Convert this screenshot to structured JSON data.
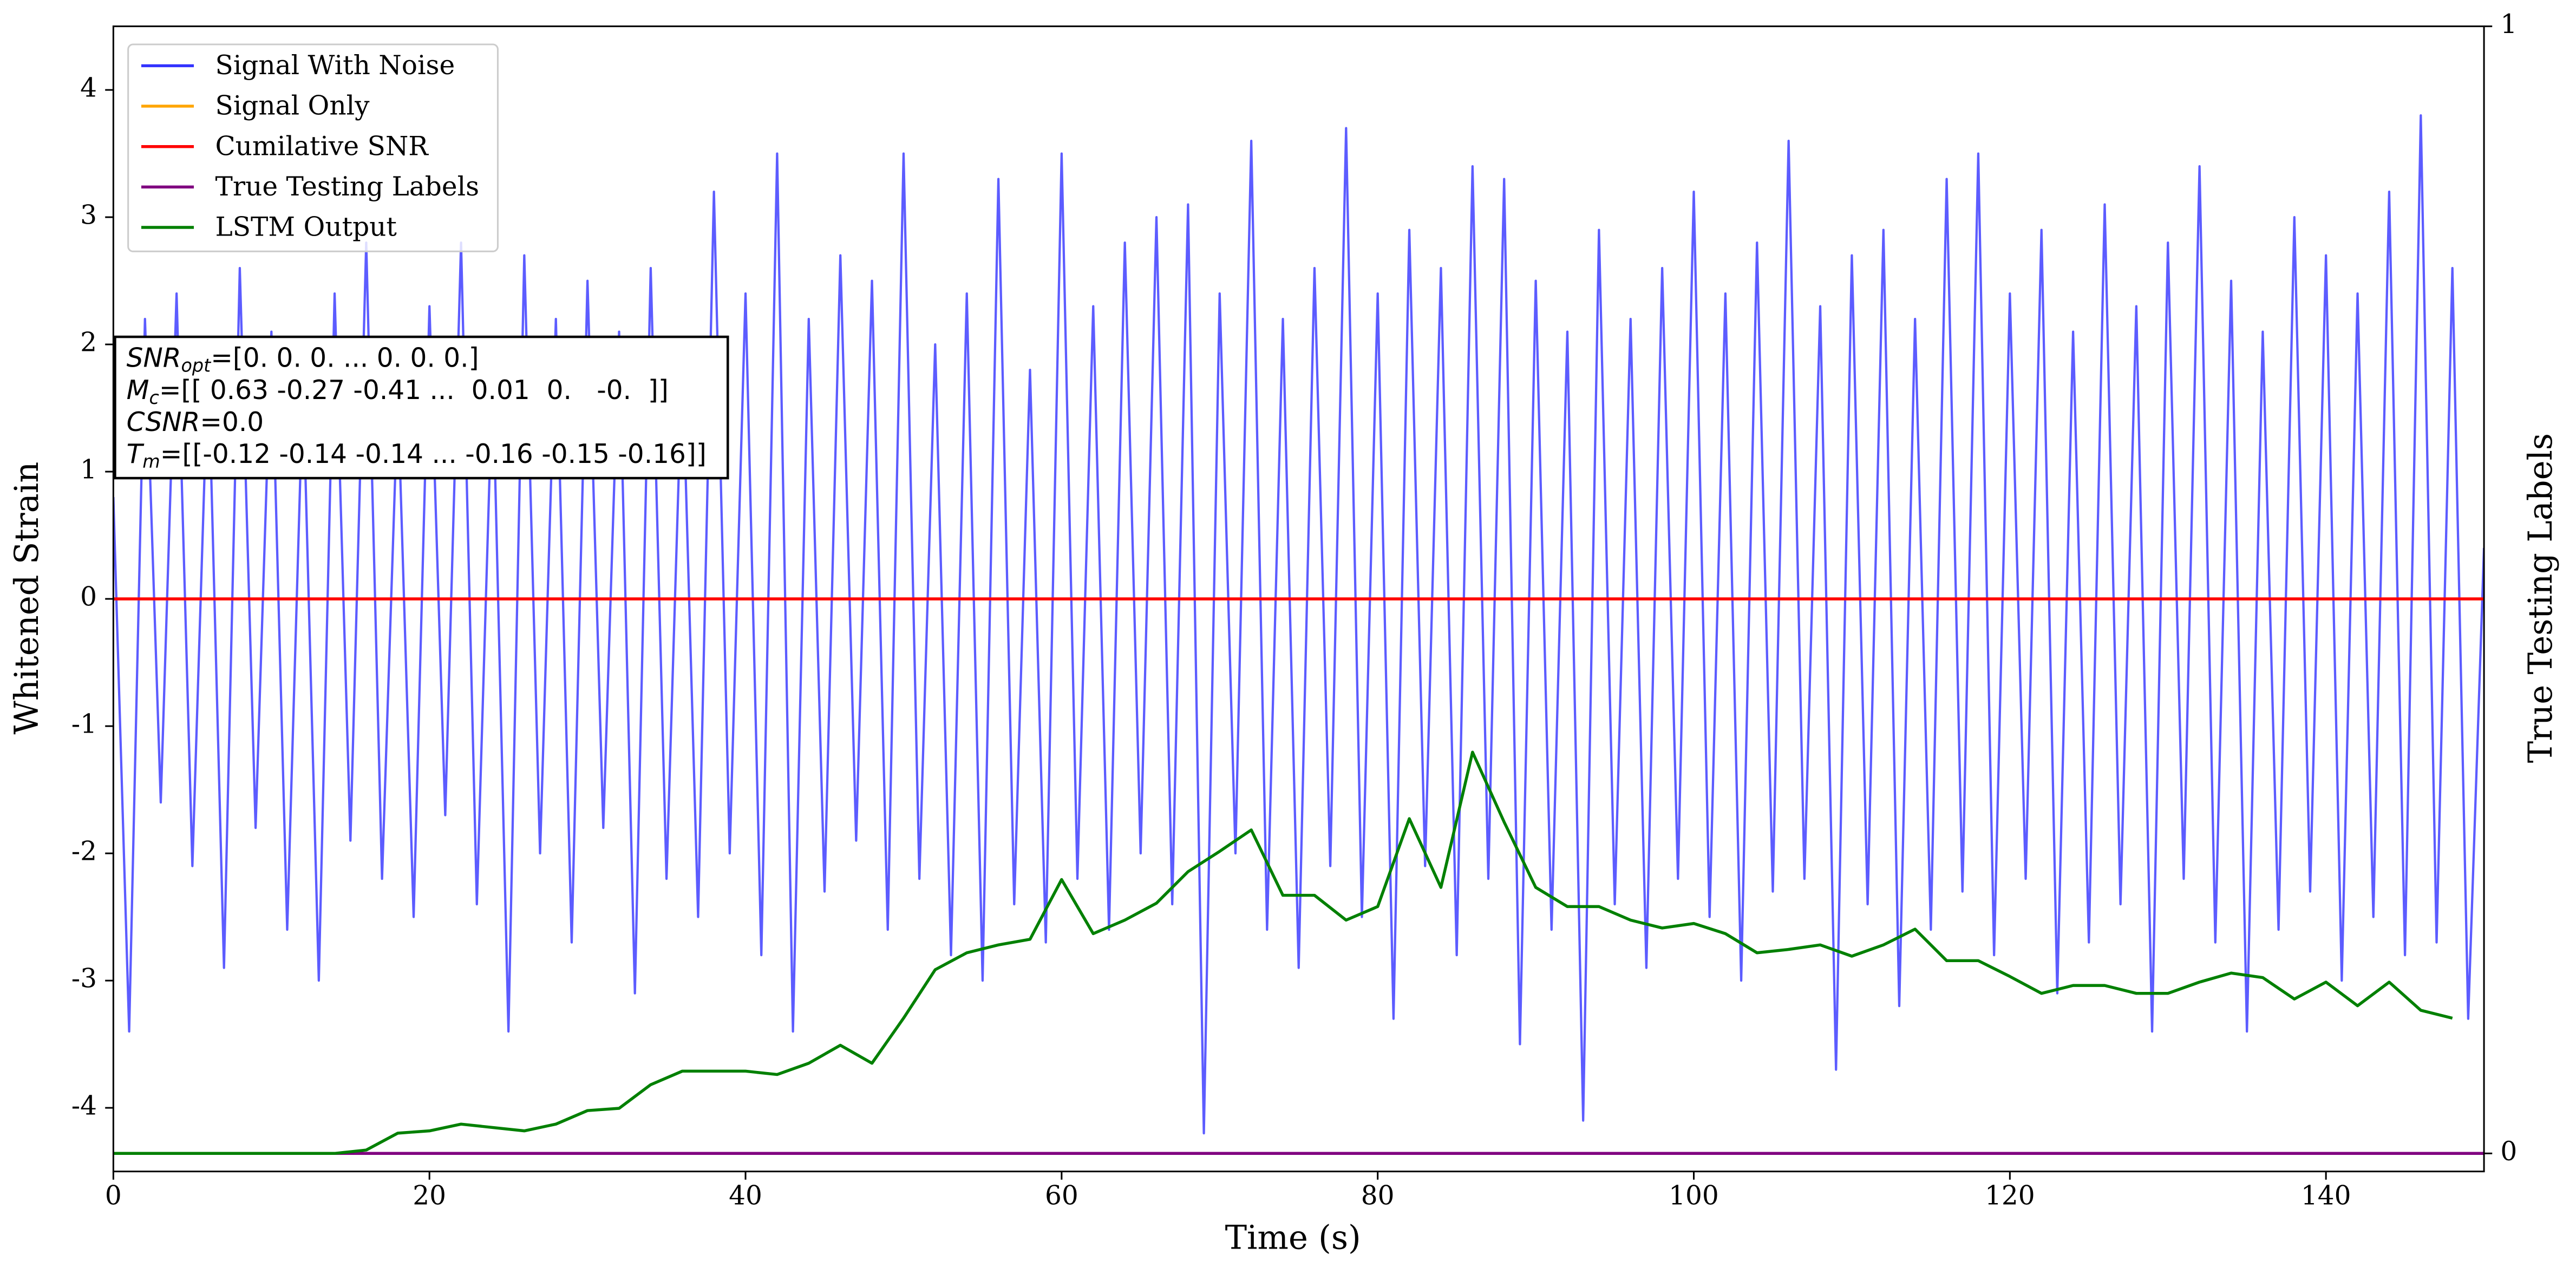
{
  "chart_data": {
    "type": "line",
    "xlabel": "Time (s)",
    "ylabel": "Whitened Strain",
    "y2label": "True Testing Labels",
    "xlim": [
      0,
      150
    ],
    "xticks": [
      0,
      20,
      40,
      60,
      80,
      100,
      120,
      140
    ],
    "ylim": [
      -4.5,
      4.5
    ],
    "yticks": [
      -4,
      -3,
      -2,
      -1,
      0,
      1,
      2,
      3,
      4
    ],
    "y2lim": [
      -0.016,
      1
    ],
    "y2ticks": [
      0,
      1
    ],
    "legend": "upper left",
    "annotations": [
      {
        "base": "SNR",
        "sub": "opt",
        "text": "=[0. 0. 0. ... 0. 0. 0.]"
      },
      {
        "base": "M",
        "sub": "c",
        "text": "=[[ 0.63 -0.27 -0.41 ...  0.01  0.   -0.  ]]"
      },
      {
        "base": "CSNR",
        "text": "=0.0"
      },
      {
        "base": "T",
        "sub": "m",
        "text": "=[[-0.12 -0.14 -0.14 ... -0.16 -0.15 -0.16]]"
      }
    ],
    "series": [
      {
        "name": "Signal With Noise",
        "color": "#3333ff",
        "x": [
          0,
          1,
          2,
          3,
          4,
          5,
          6,
          7,
          8,
          9,
          10,
          11,
          12,
          13,
          14,
          15,
          16,
          17,
          18,
          19,
          20,
          21,
          22,
          23,
          24,
          25,
          26,
          27,
          28,
          29,
          30,
          31,
          32,
          33,
          34,
          35,
          36,
          37,
          38,
          39,
          40,
          41,
          42,
          43,
          44,
          45,
          46,
          47,
          48,
          49,
          50,
          51,
          52,
          53,
          54,
          55,
          56,
          57,
          58,
          59,
          60,
          61,
          62,
          63,
          64,
          65,
          66,
          67,
          68,
          69,
          70,
          71,
          72,
          73,
          74,
          75,
          76,
          77,
          78,
          79,
          80,
          81,
          82,
          83,
          84,
          85,
          86,
          87,
          88,
          89,
          90,
          91,
          92,
          93,
          94,
          95,
          96,
          97,
          98,
          99,
          100,
          101,
          102,
          103,
          104,
          105,
          106,
          107,
          108,
          109,
          110,
          111,
          112,
          113,
          114,
          115,
          116,
          117,
          118,
          119,
          120,
          121,
          122,
          123,
          124,
          125,
          126,
          127,
          128,
          129,
          130,
          131,
          132,
          133,
          134,
          135,
          136,
          137,
          138,
          139,
          140,
          141,
          142,
          143,
          144,
          145,
          146,
          147,
          148,
          149,
          150
        ],
        "values": [
          0.8,
          -3.4,
          2.2,
          -1.6,
          2.4,
          -2.1,
          1.9,
          -2.9,
          2.6,
          -1.8,
          2.1,
          -2.6,
          1.7,
          -3.0,
          2.4,
          -1.9,
          2.8,
          -2.2,
          1.6,
          -2.5,
          2.3,
          -1.7,
          2.8,
          -2.4,
          1.8,
          -3.4,
          2.7,
          -2.0,
          2.2,
          -2.7,
          2.5,
          -1.8,
          2.1,
          -3.1,
          2.6,
          -2.2,
          1.9,
          -2.5,
          3.2,
          -2.0,
          2.4,
          -2.8,
          3.5,
          -3.4,
          2.2,
          -2.3,
          2.7,
          -1.9,
          2.5,
          -2.6,
          3.5,
          -2.2,
          2.0,
          -2.8,
          2.4,
          -3.0,
          3.3,
          -2.4,
          1.8,
          -2.7,
          3.5,
          -2.2,
          2.3,
          -2.6,
          2.8,
          -2.0,
          3.0,
          -2.4,
          3.1,
          -4.2,
          2.4,
          -2.0,
          3.6,
          -2.6,
          2.2,
          -2.9,
          2.6,
          -2.1,
          3.7,
          -2.5,
          2.4,
          -3.3,
          2.9,
          -2.1,
          2.6,
          -2.8,
          3.4,
          -2.2,
          3.3,
          -3.5,
          2.5,
          -2.6,
          2.1,
          -4.1,
          2.9,
          -2.4,
          2.2,
          -2.9,
          2.6,
          -2.2,
          3.2,
          -2.5,
          2.4,
          -3.0,
          2.8,
          -2.3,
          3.6,
          -2.2,
          2.3,
          -3.7,
          2.7,
          -2.4,
          2.9,
          -3.2,
          2.2,
          -2.6,
          3.3,
          -2.3,
          3.5,
          -2.8,
          2.4,
          -2.2,
          2.9,
          -3.1,
          2.1,
          -2.7,
          3.1,
          -2.4,
          2.3,
          -3.4,
          2.8,
          -2.2,
          3.4,
          -2.7,
          2.5,
          -3.4,
          2.1,
          -2.6,
          3.0,
          -2.3,
          2.7,
          -3.0,
          2.4,
          -2.5,
          3.2,
          -2.8,
          3.8,
          -2.7,
          2.6,
          -3.3,
          0.4
        ]
      },
      {
        "name": "Signal Only",
        "color": "#ffa500",
        "x": [
          0,
          150
        ],
        "values": [
          0,
          0
        ]
      },
      {
        "name": "Cumilative SNR",
        "color": "#ff0000",
        "x": [
          0,
          150
        ],
        "values": [
          0,
          0
        ]
      },
      {
        "name": "True Testing Labels",
        "color": "#800080",
        "axis": "y2",
        "x": [
          0,
          150
        ],
        "values": [
          0,
          0
        ]
      },
      {
        "name": "LSTM Output",
        "color": "#008000",
        "axis": "y2",
        "x": [
          0,
          2,
          4,
          6,
          8,
          10,
          12,
          14,
          16,
          18,
          20,
          22,
          24,
          26,
          28,
          30,
          32,
          34,
          36,
          38,
          40,
          42,
          44,
          46,
          48,
          50,
          52,
          54,
          56,
          58,
          60,
          62,
          64,
          66,
          68,
          70,
          72,
          74,
          76,
          78,
          80,
          82,
          84,
          86,
          88,
          90,
          92,
          94,
          96,
          98,
          100,
          102,
          104,
          106,
          108,
          110,
          112,
          114,
          116,
          118,
          120,
          122,
          124,
          126,
          128,
          130,
          132,
          134,
          136,
          138,
          140,
          142,
          144,
          146,
          148
        ],
        "values": [
          0,
          0,
          0,
          0,
          0,
          0,
          0,
          0,
          0.003,
          0.018,
          0.02,
          0.026,
          0.023,
          0.02,
          0.026,
          0.038,
          0.04,
          0.061,
          0.073,
          0.073,
          0.073,
          0.07,
          0.08,
          0.096,
          0.08,
          0.12,
          0.163,
          0.178,
          0.185,
          0.19,
          0.243,
          0.195,
          0.207,
          0.222,
          0.25,
          0.268,
          0.287,
          0.229,
          0.229,
          0.207,
          0.219,
          0.297,
          0.236,
          0.356,
          0.294,
          0.236,
          0.219,
          0.219,
          0.207,
          0.2,
          0.204,
          0.195,
          0.178,
          0.181,
          0.185,
          0.175,
          0.185,
          0.199,
          0.171,
          0.171,
          0.157,
          0.142,
          0.149,
          0.149,
          0.142,
          0.142,
          0.152,
          0.16,
          0.156,
          0.137,
          0.152,
          0.131,
          0.152,
          0.127,
          0.12
        ]
      }
    ]
  }
}
